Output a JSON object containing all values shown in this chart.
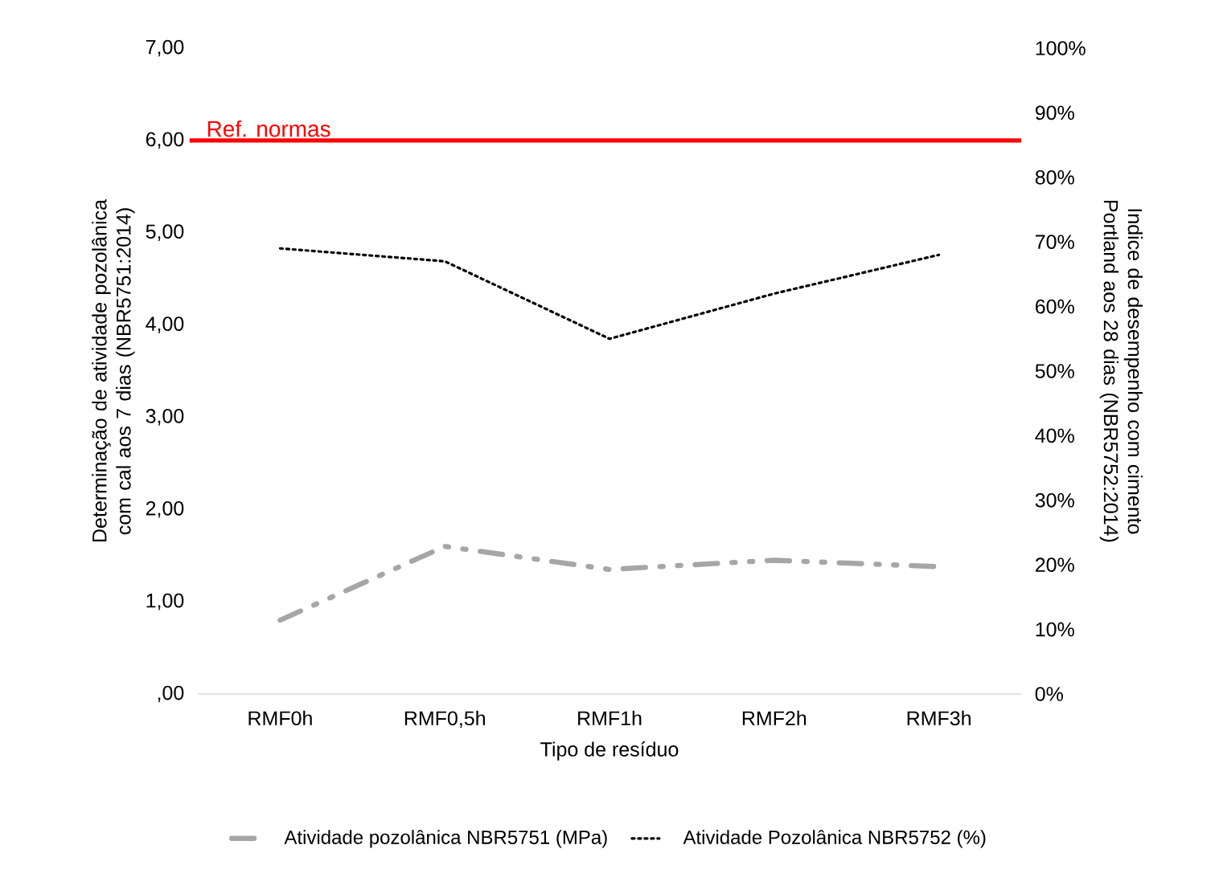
{
  "chart_data": {
    "type": "line",
    "xlabel": "Tipo de resíduo",
    "ylabel": "Determinação de atividade pozolânica com cal aos 7 dias (NBR5751:2014)",
    "y2label": "Indice de desempenho com cimento Portland aos 28 dias (NBR5752:2014)",
    "categories": [
      "RMF0h",
      "RMF0,5h",
      "RMF1h",
      "RMF2h",
      "RMF3h"
    ],
    "series": [
      {
        "name": "Atividade pozolânica NBR5751 (MPa)",
        "color": "#a6a6a6",
        "line_style": "dashed",
        "axis": "y",
        "values": [
          0.8,
          1.6,
          1.35,
          1.45,
          1.38
        ]
      },
      {
        "name": "Atividade Pozolânica NBR5752 (%)",
        "color": "#000000",
        "line_style": "dotted",
        "axis": "y2",
        "values": [
          69,
          67,
          55,
          62,
          68
        ]
      }
    ],
    "ylim": [
      0,
      7
    ],
    "yticks": [
      {
        "value": 0,
        "label": ",00"
      },
      {
        "value": 1,
        "label": "1,00"
      },
      {
        "value": 2,
        "label": "2,00"
      },
      {
        "value": 3,
        "label": "3,00"
      },
      {
        "value": 4,
        "label": "4,00"
      },
      {
        "value": 5,
        "label": "5,00"
      },
      {
        "value": 6,
        "label": "6,00"
      },
      {
        "value": 7,
        "label": "7,00"
      }
    ],
    "y2lim": [
      0,
      100
    ],
    "y2ticks": [
      {
        "value": 0,
        "label": "0%"
      },
      {
        "value": 10,
        "label": "10%"
      },
      {
        "value": 20,
        "label": "20%"
      },
      {
        "value": 30,
        "label": "30%"
      },
      {
        "value": 40,
        "label": "40%"
      },
      {
        "value": 50,
        "label": "50%"
      },
      {
        "value": 60,
        "label": "60%"
      },
      {
        "value": 70,
        "label": "70%"
      },
      {
        "value": 80,
        "label": "80%"
      },
      {
        "value": 90,
        "label": "90%"
      },
      {
        "value": 100,
        "label": "100%"
      }
    ],
    "ref_lines": [
      {
        "axis": "y",
        "value": 6,
        "label": "Ref. normas",
        "color": "#ff0000"
      }
    ],
    "legend": "bottom"
  }
}
